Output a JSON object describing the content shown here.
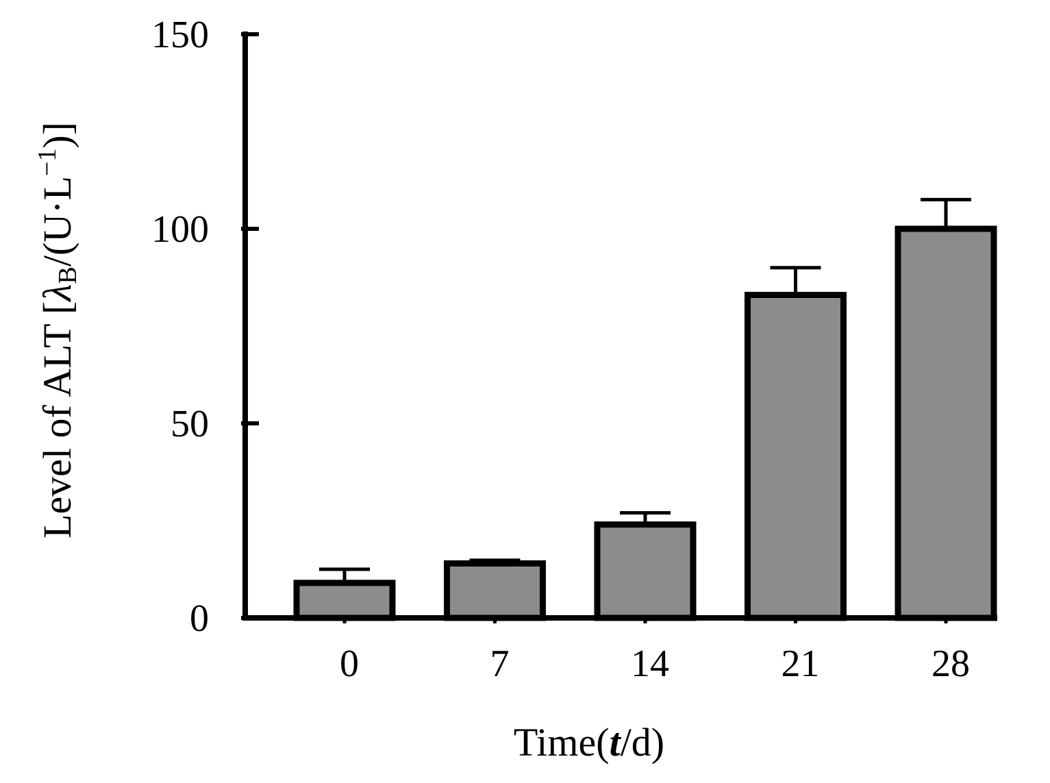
{
  "chart_data": {
    "type": "bar",
    "title": "",
    "xlabel": "Time(t/d)",
    "xlabel_parts": {
      "before": "Time(",
      "italic": "t",
      "after": "/d)"
    },
    "ylabel": "Level of ALT [λB/(U·L−1)]",
    "ylabel_parts": {
      "main": "Level of ALT [",
      "lambda": "λ",
      "sub": "B",
      "mid": "/(U·L",
      "sup": "−1",
      "end": ")]"
    },
    "categories": [
      "0",
      "7",
      "14",
      "21",
      "28"
    ],
    "values": [
      9,
      14,
      24,
      83,
      100
    ],
    "errors": [
      3.5,
      0.8,
      3,
      7,
      7.5
    ],
    "ylim": [
      0,
      150
    ],
    "yticks": [
      "0",
      "50",
      "100",
      "150"
    ],
    "grid": false,
    "legend": "none",
    "bar_color": "#8c8c8c",
    "edge_color": "#000000"
  }
}
